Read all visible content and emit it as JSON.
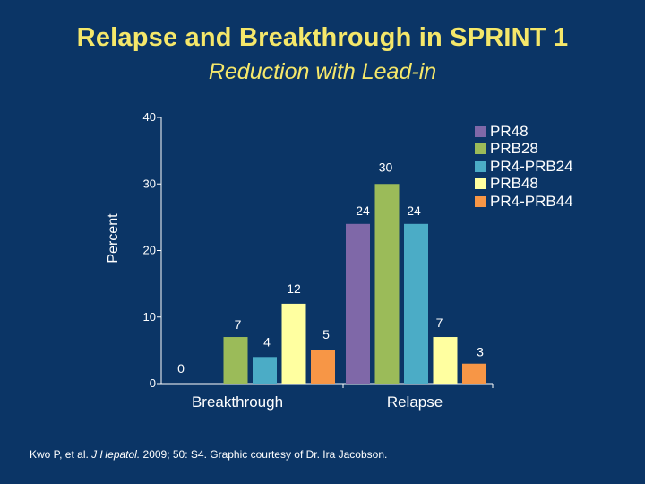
{
  "title": "Relapse and Breakthrough in SPRINT 1",
  "subtitle": "Reduction with Lead-in",
  "footer": {
    "prefix": "Kwo P, et al. ",
    "journal": "J Hepatol.",
    "suffix": " 2009; 50: S4. Graphic courtesy of Dr. Ira Jacobson."
  },
  "chart_data": {
    "type": "bar",
    "ylabel": "Percent",
    "xlabel": "",
    "ylim": [
      0,
      40
    ],
    "yticks": [
      0,
      10,
      20,
      30,
      40
    ],
    "categories": [
      "Breakthrough",
      "Relapse"
    ],
    "legend_position": "top-right",
    "grid": false,
    "series": [
      {
        "name": "PR48",
        "color": "#7f68a8",
        "values": [
          0,
          24
        ]
      },
      {
        "name": "PRB28",
        "color": "#9bbb59",
        "values": [
          7,
          30
        ]
      },
      {
        "name": "PR4-PRB24",
        "color": "#4bacc6",
        "values": [
          4,
          24
        ]
      },
      {
        "name": "PRB48",
        "color": "#ffffa0",
        "values": [
          12,
          7
        ]
      },
      {
        "name": "PR4-PRB44",
        "color": "#f79646",
        "values": [
          5,
          3
        ]
      }
    ]
  },
  "colors": {
    "background": "#0b3566",
    "title": "#f5e76a",
    "axis": "#ffffff"
  }
}
